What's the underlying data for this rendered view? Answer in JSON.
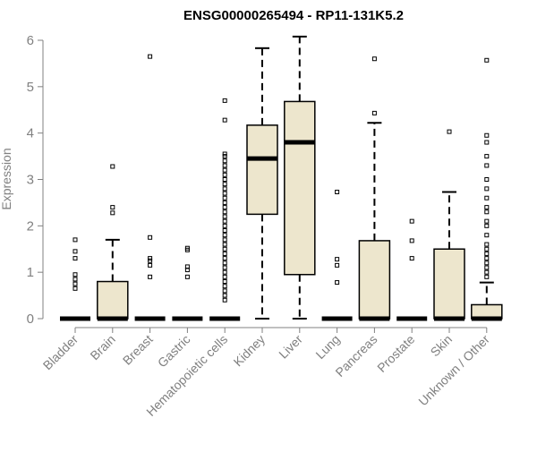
{
  "chart_data": {
    "type": "boxplot",
    "title": "ENSG00000265494 - RP11-131K5.2",
    "xlabel": "",
    "ylabel": "Expression",
    "ylim": [
      0,
      6
    ],
    "yticks": [
      0,
      1,
      2,
      3,
      4,
      5,
      6
    ],
    "categories": [
      "Bladder",
      "Brain",
      "Breast",
      "Gastric",
      "Hematopoietic cells",
      "Kidney",
      "Liver",
      "Lung",
      "Pancreas",
      "Prostate",
      "Skin",
      "Unknown / Other"
    ],
    "boxes": [
      {
        "category": "Bladder",
        "whisker_low": 0,
        "q1": 0,
        "median": 0,
        "q3": 0,
        "whisker_high": 0,
        "outliers": [
          1.7,
          1.45,
          1.3,
          0.95,
          0.85,
          0.75,
          0.65
        ]
      },
      {
        "category": "Brain",
        "whisker_low": 0,
        "q1": 0,
        "median": 0,
        "q3": 0.8,
        "whisker_high": 1.7,
        "outliers": [
          3.28,
          2.4,
          2.28
        ]
      },
      {
        "category": "Breast",
        "whisker_low": 0,
        "q1": 0,
        "median": 0,
        "q3": 0,
        "whisker_high": 0,
        "outliers": [
          5.65,
          1.75,
          1.3,
          1.25,
          1.15,
          0.9
        ]
      },
      {
        "category": "Gastric",
        "whisker_low": 0,
        "q1": 0,
        "median": 0,
        "q3": 0,
        "whisker_high": 0,
        "outliers": [
          1.52,
          1.48,
          1.12,
          1.05,
          0.9
        ]
      },
      {
        "category": "Hematopoietic cells",
        "whisker_low": 0,
        "q1": 0,
        "median": 0,
        "q3": 0,
        "whisker_high": 0,
        "outliers": [
          4.7,
          4.28,
          3.55,
          3.5,
          3.4,
          3.3,
          3.2,
          3.1,
          3.0,
          2.9,
          2.8,
          2.7,
          2.6,
          2.5,
          2.4,
          2.3,
          2.2,
          2.1,
          2.0,
          1.9,
          1.8,
          1.7,
          1.6,
          1.5,
          1.4,
          1.3,
          1.2,
          1.1,
          1.0,
          0.9,
          0.8,
          0.7,
          0.6,
          0.5,
          0.4
        ]
      },
      {
        "category": "Kidney",
        "whisker_low": 0,
        "q1": 2.25,
        "median": 3.45,
        "q3": 4.17,
        "whisker_high": 5.83,
        "outliers": []
      },
      {
        "category": "Liver",
        "whisker_low": 0,
        "q1": 0.95,
        "median": 3.8,
        "q3": 4.68,
        "whisker_high": 6.08,
        "outliers": []
      },
      {
        "category": "Lung",
        "whisker_low": 0,
        "q1": 0,
        "median": 0,
        "q3": 0,
        "whisker_high": 0,
        "outliers": [
          2.73,
          1.28,
          1.15,
          0.78
        ]
      },
      {
        "category": "Pancreas",
        "whisker_low": 0,
        "q1": 0,
        "median": 0,
        "q3": 1.68,
        "whisker_high": 4.22,
        "outliers": [
          5.6,
          4.43
        ]
      },
      {
        "category": "Prostate",
        "whisker_low": 0,
        "q1": 0,
        "median": 0,
        "q3": 0,
        "whisker_high": 0,
        "outliers": [
          2.1,
          1.68,
          1.3
        ]
      },
      {
        "category": "Skin",
        "whisker_low": 0,
        "q1": 0,
        "median": 0,
        "q3": 1.5,
        "whisker_high": 2.73,
        "outliers": [
          4.03
        ]
      },
      {
        "category": "Unknown / Other",
        "whisker_low": 0,
        "q1": 0,
        "median": 0,
        "q3": 0.3,
        "whisker_high": 0.78,
        "outliers": [
          5.57,
          3.95,
          3.8,
          3.5,
          3.3,
          3.0,
          2.8,
          2.6,
          2.4,
          2.3,
          2.1,
          2.0,
          1.8,
          1.6,
          1.5,
          1.4,
          1.3,
          1.2,
          1.1,
          1.0,
          0.9
        ]
      }
    ],
    "colors": {
      "box_fill": "#ede6cd",
      "box_stroke": "#000000",
      "axis_text": "#808080",
      "axis_line": "#808080",
      "title": "#000000"
    }
  }
}
